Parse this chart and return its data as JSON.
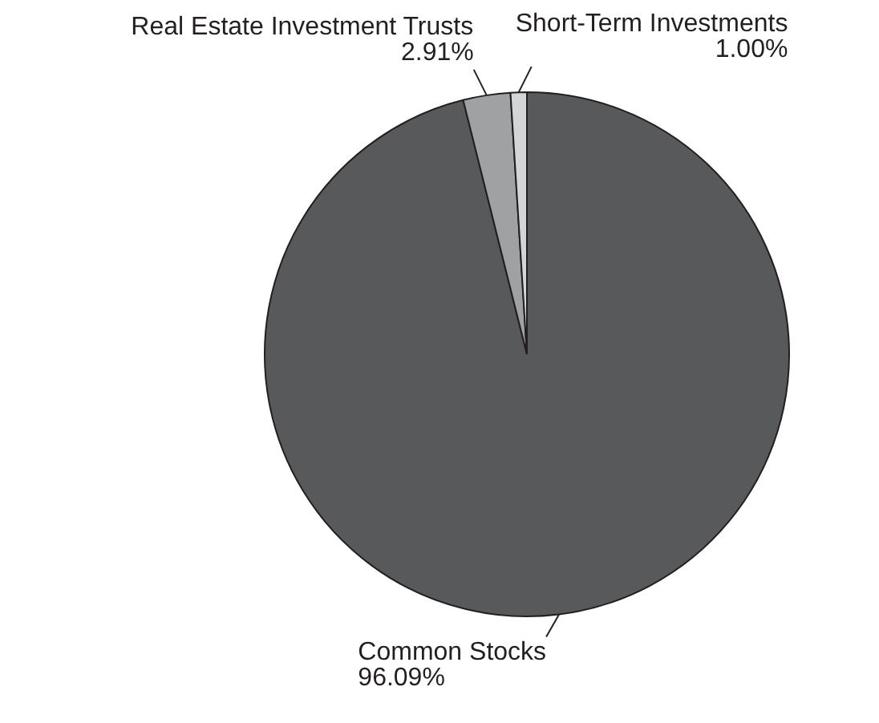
{
  "chart_data": {
    "type": "pie",
    "categories": [
      "Common Stocks",
      "Real Estate Investment Trusts",
      "Short-Term Investments"
    ],
    "values": [
      96.09,
      2.91,
      1.0
    ],
    "value_labels": [
      "96.09%",
      "2.91%",
      "1.00%"
    ],
    "colors": [
      "#58595b",
      "#a0a1a3",
      "#d4d5d6"
    ],
    "legend": false
  }
}
